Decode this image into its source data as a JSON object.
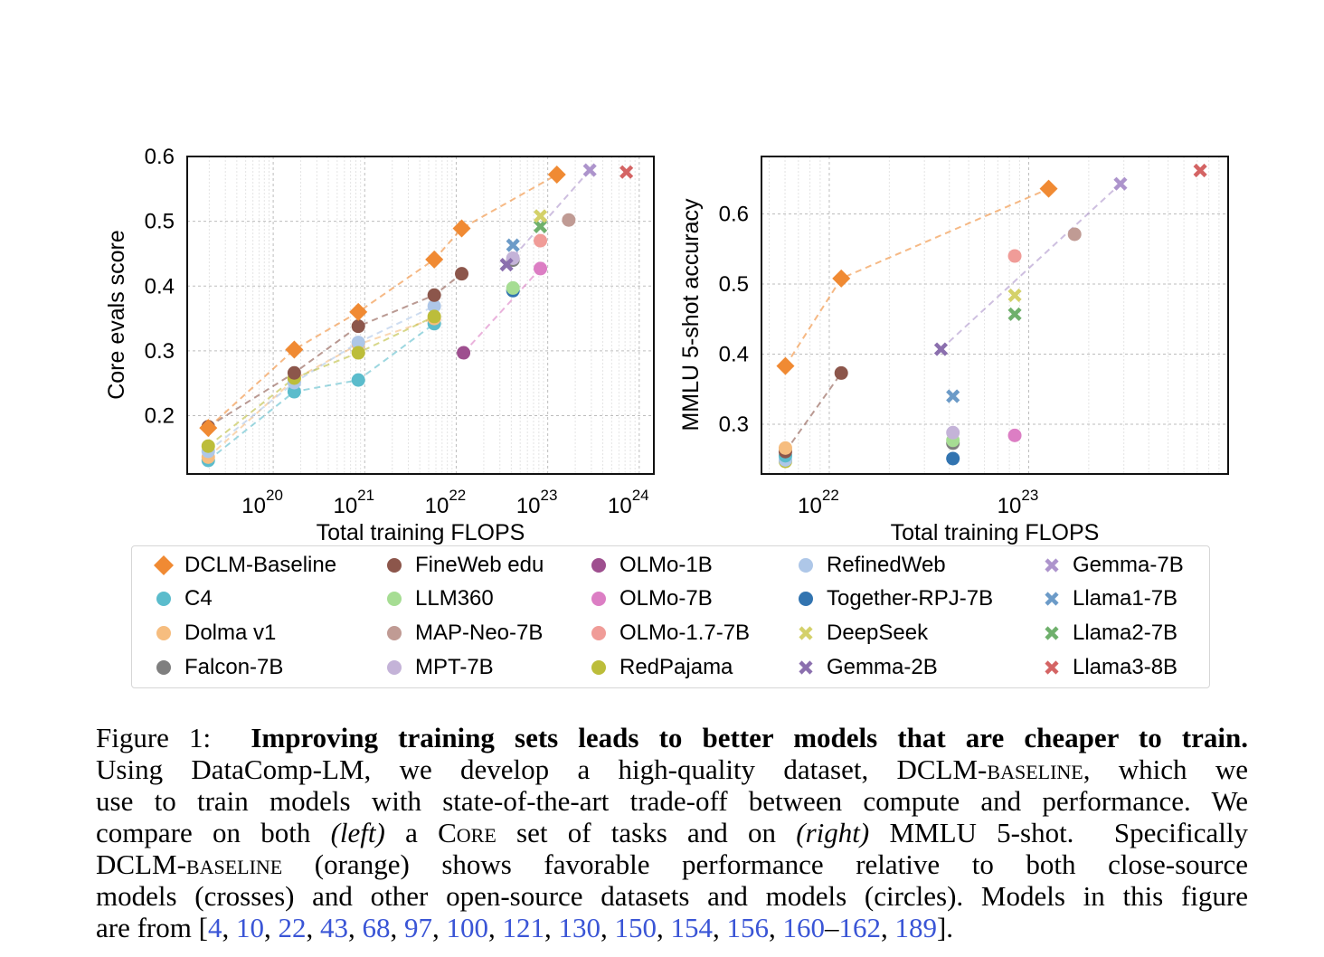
{
  "chart_data": [
    {
      "type": "scatter",
      "id": "left",
      "xlabel": "Total training FLOPS",
      "ylabel": "Core evals score",
      "xscale": "log",
      "x_units": "log10(FLOPs)",
      "xlim": [
        19.06,
        24.16
      ],
      "ylim": [
        0.11,
        0.6
      ],
      "xticks": [
        {
          "base": "10",
          "exp": "20",
          "v": 20
        },
        {
          "base": "10",
          "exp": "21",
          "v": 21
        },
        {
          "base": "10",
          "exp": "22",
          "v": 22
        },
        {
          "base": "10",
          "exp": "23",
          "v": 23
        },
        {
          "base": "10",
          "exp": "24",
          "v": 24
        }
      ],
      "yticks": [
        {
          "label": "0.2",
          "v": 0.2
        },
        {
          "label": "0.3",
          "v": 0.3
        },
        {
          "label": "0.4",
          "v": 0.4
        },
        {
          "label": "0.5",
          "v": 0.5
        },
        {
          "label": "0.6",
          "v": 0.6
        }
      ],
      "grid": true,
      "series": [
        {
          "name": "C4",
          "marker": "circle",
          "color": "#5bbccc",
          "line": true,
          "points": [
            [
              19.29,
              0.131
            ],
            [
              20.23,
              0.237
            ],
            [
              20.93,
              0.255
            ],
            [
              21.76,
              0.342
            ]
          ]
        },
        {
          "name": "Dolma v1",
          "marker": "circle",
          "color": "#f6bd7f",
          "line": true,
          "points": [
            [
              19.29,
              0.136
            ],
            [
              20.23,
              0.256
            ],
            [
              20.93,
              0.31
            ],
            [
              21.76,
              0.35
            ]
          ]
        },
        {
          "name": "RefinedWeb",
          "marker": "circle",
          "color": "#aec7e8",
          "line": true,
          "points": [
            [
              19.29,
              0.145
            ],
            [
              20.23,
              0.251
            ],
            [
              20.93,
              0.313
            ],
            [
              21.76,
              0.369
            ]
          ]
        },
        {
          "name": "RedPajama",
          "marker": "circle",
          "color": "#bcbd3a",
          "line": true,
          "points": [
            [
              19.29,
              0.153
            ],
            [
              20.23,
              0.258
            ],
            [
              20.93,
              0.297
            ],
            [
              21.76,
              0.353
            ]
          ]
        },
        {
          "name": "FineWeb edu",
          "marker": "circle",
          "color": "#8c564b",
          "line": true,
          "points": [
            [
              19.29,
              0.183
            ],
            [
              20.23,
              0.266
            ],
            [
              20.93,
              0.338
            ],
            [
              21.76,
              0.386
            ],
            [
              22.06,
              0.419
            ]
          ]
        },
        {
          "name": "OLMo-1B",
          "marker": "circle",
          "color": "#9e4f8f",
          "line": false,
          "points": [
            [
              22.08,
              0.297
            ]
          ]
        },
        {
          "name": "OLMo-7B",
          "marker": "circle",
          "color": "#dc7ec4",
          "line": false,
          "points": [
            [
              22.92,
              0.427
            ]
          ]
        },
        {
          "name": "OLMo-1B to OLMo-7B",
          "marker": "none",
          "color": "#dc7ec4",
          "line": true,
          "points": [
            [
              22.08,
              0.297
            ],
            [
              22.92,
              0.427
            ]
          ]
        },
        {
          "name": "Together-RPJ-7B",
          "marker": "circle",
          "color": "#3274b0",
          "line": false,
          "points": [
            [
              22.62,
              0.393
            ]
          ]
        },
        {
          "name": "LLM360",
          "marker": "circle",
          "color": "#a6dd93",
          "line": false,
          "points": [
            [
              22.62,
              0.397
            ]
          ]
        },
        {
          "name": "Falcon-7B",
          "marker": "circle",
          "color": "#7f7f7f",
          "line": false,
          "points": [
            [
              22.62,
              0.44
            ]
          ]
        },
        {
          "name": "MPT-7B",
          "marker": "circle",
          "color": "#c4b3d8",
          "line": false,
          "points": [
            [
              22.62,
              0.443
            ]
          ]
        },
        {
          "name": "OLMo-1.7-7B",
          "marker": "circle",
          "color": "#f09c98",
          "line": false,
          "points": [
            [
              22.92,
              0.47
            ]
          ]
        },
        {
          "name": "MAP-Neo-7B",
          "marker": "circle",
          "color": "#c09b94",
          "line": false,
          "points": [
            [
              23.23,
              0.502
            ]
          ]
        },
        {
          "name": "Gemma-2B",
          "marker": "cross",
          "color": "#8b6fae",
          "line": false,
          "points": [
            [
              22.55,
              0.433
            ]
          ]
        },
        {
          "name": "Gemma-7B",
          "marker": "cross",
          "color": "#ad94cc",
          "line": false,
          "points": [
            [
              23.46,
              0.579
            ]
          ]
        },
        {
          "name": "Gemma-2B to Gemma-7B",
          "marker": "none",
          "color": "#ad94cc",
          "line": true,
          "points": [
            [
              22.55,
              0.433
            ],
            [
              23.46,
              0.579
            ]
          ]
        },
        {
          "name": "Llama1-7B",
          "marker": "cross",
          "color": "#6c9bc8",
          "line": false,
          "points": [
            [
              22.62,
              0.463
            ]
          ]
        },
        {
          "name": "Llama2-7B",
          "marker": "cross",
          "color": "#6fb06c",
          "line": false,
          "points": [
            [
              22.92,
              0.492
            ]
          ]
        },
        {
          "name": "DeepSeek",
          "marker": "cross",
          "color": "#d4d16a",
          "line": false,
          "points": [
            [
              22.92,
              0.508
            ]
          ]
        },
        {
          "name": "Llama3-8B",
          "marker": "cross",
          "color": "#d46464",
          "line": false,
          "points": [
            [
              23.86,
              0.576
            ]
          ]
        },
        {
          "name": "DCLM-Baseline",
          "marker": "diamond",
          "color": "#f08a33",
          "line": true,
          "points": [
            [
              19.29,
              0.181
            ],
            [
              20.23,
              0.302
            ],
            [
              20.93,
              0.36
            ],
            [
              21.76,
              0.441
            ],
            [
              22.06,
              0.489
            ],
            [
              23.1,
              0.572
            ]
          ]
        }
      ]
    },
    {
      "type": "scatter",
      "id": "right",
      "xlabel": "Total training FLOPS",
      "ylabel": "MMLU 5-shot accuracy",
      "xscale": "log",
      "x_units": "log10(FLOPs)",
      "xlim": [
        21.66,
        24.0
      ],
      "ylim": [
        0.229,
        0.682
      ],
      "xticks": [
        {
          "base": "10",
          "exp": "22",
          "v": 22
        },
        {
          "base": "10",
          "exp": "23",
          "v": 23
        }
      ],
      "yticks": [
        {
          "label": "0.3",
          "v": 0.3
        },
        {
          "label": "0.4",
          "v": 0.4
        },
        {
          "label": "0.5",
          "v": 0.5
        },
        {
          "label": "0.6",
          "v": 0.6
        }
      ],
      "grid": true,
      "series": [
        {
          "name": "RedPajama",
          "marker": "circle",
          "color": "#bcbd3a",
          "line": false,
          "points": [
            [
              21.78,
              0.247
            ]
          ]
        },
        {
          "name": "RefinedWeb",
          "marker": "circle",
          "color": "#aec7e8",
          "line": false,
          "points": [
            [
              21.78,
              0.249
            ]
          ]
        },
        {
          "name": "C4",
          "marker": "circle",
          "color": "#5bbccc",
          "line": false,
          "points": [
            [
              21.78,
              0.255
            ]
          ]
        },
        {
          "name": "FineWeb edu",
          "marker": "circle",
          "color": "#8c564b",
          "line": true,
          "points": [
            [
              21.78,
              0.261
            ],
            [
              22.06,
              0.373
            ]
          ]
        },
        {
          "name": "Dolma v1",
          "marker": "circle",
          "color": "#f6bd7f",
          "line": false,
          "points": [
            [
              21.78,
              0.266
            ]
          ]
        },
        {
          "name": "Together-RPJ-7B",
          "marker": "circle",
          "color": "#3274b0",
          "line": false,
          "points": [
            [
              22.62,
              0.251
            ]
          ]
        },
        {
          "name": "Falcon-7B",
          "marker": "circle",
          "color": "#7f7f7f",
          "line": false,
          "points": [
            [
              22.62,
              0.273
            ]
          ]
        },
        {
          "name": "LLM360",
          "marker": "circle",
          "color": "#a6dd93",
          "line": false,
          "points": [
            [
              22.62,
              0.277
            ]
          ]
        },
        {
          "name": "MPT-7B",
          "marker": "circle",
          "color": "#c4b3d8",
          "line": false,
          "points": [
            [
              22.62,
              0.288
            ]
          ]
        },
        {
          "name": "OLMo-7B",
          "marker": "circle",
          "color": "#dc7ec4",
          "line": false,
          "points": [
            [
              22.93,
              0.284
            ]
          ]
        },
        {
          "name": "OLMo-1.7-7B",
          "marker": "circle",
          "color": "#f09c98",
          "line": false,
          "points": [
            [
              22.93,
              0.54
            ]
          ]
        },
        {
          "name": "MAP-Neo-7B",
          "marker": "circle",
          "color": "#c09b94",
          "line": false,
          "points": [
            [
              23.23,
              0.571
            ]
          ]
        },
        {
          "name": "Llama1-7B",
          "marker": "cross",
          "color": "#6c9bc8",
          "line": false,
          "points": [
            [
              22.62,
              0.34
            ]
          ]
        },
        {
          "name": "Llama2-7B",
          "marker": "cross",
          "color": "#6fb06c",
          "line": false,
          "points": [
            [
              22.93,
              0.457
            ]
          ]
        },
        {
          "name": "DeepSeek",
          "marker": "cross",
          "color": "#d4d16a",
          "line": false,
          "points": [
            [
              22.93,
              0.484
            ]
          ]
        },
        {
          "name": "Gemma-2B",
          "marker": "cross",
          "color": "#8b6fae",
          "line": false,
          "points": [
            [
              22.56,
              0.407
            ]
          ]
        },
        {
          "name": "Gemma-7B",
          "marker": "cross",
          "color": "#ad94cc",
          "line": false,
          "points": [
            [
              23.46,
              0.643
            ]
          ]
        },
        {
          "name": "Gemma-2B to Gemma-7B",
          "marker": "none",
          "color": "#ad94cc",
          "line": true,
          "points": [
            [
              22.56,
              0.407
            ],
            [
              23.46,
              0.643
            ]
          ]
        },
        {
          "name": "Llama3-8B",
          "marker": "cross",
          "color": "#d46464",
          "line": false,
          "points": [
            [
              23.86,
              0.662
            ]
          ]
        },
        {
          "name": "DCLM-Baseline",
          "marker": "diamond",
          "color": "#f08a33",
          "line": true,
          "points": [
            [
              21.78,
              0.383
            ],
            [
              22.06,
              0.508
            ],
            [
              23.1,
              0.636
            ]
          ]
        }
      ]
    }
  ],
  "legend": [
    {
      "label": "DCLM-Baseline",
      "marker": "diamond",
      "color": "#f08a33"
    },
    {
      "label": "C4",
      "marker": "circle",
      "color": "#5bbccc"
    },
    {
      "label": "Dolma v1",
      "marker": "circle",
      "color": "#f6bd7f"
    },
    {
      "label": "Falcon-7B",
      "marker": "circle",
      "color": "#7f7f7f"
    },
    {
      "label": "FineWeb edu",
      "marker": "circle",
      "color": "#8c564b"
    },
    {
      "label": "LLM360",
      "marker": "circle",
      "color": "#a6dd93"
    },
    {
      "label": "MAP-Neo-7B",
      "marker": "circle",
      "color": "#c09b94"
    },
    {
      "label": "MPT-7B",
      "marker": "circle",
      "color": "#c4b3d8"
    },
    {
      "label": "OLMo-1B",
      "marker": "circle",
      "color": "#9e4f8f"
    },
    {
      "label": "OLMo-7B",
      "marker": "circle",
      "color": "#dc7ec4"
    },
    {
      "label": "OLMo-1.7-7B",
      "marker": "circle",
      "color": "#f09c98"
    },
    {
      "label": "RedPajama",
      "marker": "circle",
      "color": "#bcbd3a"
    },
    {
      "label": "RefinedWeb",
      "marker": "circle",
      "color": "#aec7e8"
    },
    {
      "label": "Together-RPJ-7B",
      "marker": "circle",
      "color": "#3274b0"
    },
    {
      "label": "DeepSeek",
      "marker": "cross",
      "color": "#d4d16a"
    },
    {
      "label": "Gemma-2B",
      "marker": "cross",
      "color": "#8b6fae"
    },
    {
      "label": "Gemma-7B",
      "marker": "cross",
      "color": "#ad94cc"
    },
    {
      "label": "Llama1-7B",
      "marker": "cross",
      "color": "#6c9bc8"
    },
    {
      "label": "Llama2-7B",
      "marker": "cross",
      "color": "#6fb06c"
    },
    {
      "label": "Llama3-8B",
      "marker": "cross",
      "color": "#d46464"
    }
  ],
  "caption": {
    "lines": [
      [
        {
          "t": "Figure 1:  ",
          "s": ""
        },
        {
          "t": "Improving training sets leads to better models that are cheaper to train.",
          "s": "b"
        }
      ],
      [
        {
          "t": "Using DataComp-LM, we develop a high-quality dataset, DCLM-",
          "s": ""
        },
        {
          "t": "baseline",
          "s": "sc"
        },
        {
          "t": ", which we",
          "s": ""
        }
      ],
      [
        {
          "t": "use to train models with state-of-the-art trade-off between compute and performance. We",
          "s": ""
        }
      ],
      [
        {
          "t": "compare on both ",
          "s": ""
        },
        {
          "t": "(left)",
          "s": "i"
        },
        {
          "t": " a ",
          "s": ""
        },
        {
          "t": "Core",
          "s": "sc"
        },
        {
          "t": " set of tasks and on ",
          "s": ""
        },
        {
          "t": "(right)",
          "s": "i"
        },
        {
          "t": " MMLU 5-shot.  Specifically",
          "s": ""
        }
      ],
      [
        {
          "t": "DCLM-",
          "s": ""
        },
        {
          "t": "baseline",
          "s": "sc"
        },
        {
          "t": " (orange) shows favorable performance relative to both close-source",
          "s": ""
        }
      ],
      [
        {
          "t": "models (crosses) and other open-source datasets and models (circles). Models in this figure",
          "s": ""
        }
      ],
      [
        {
          "t": "are from [",
          "s": ""
        },
        {
          "t": "4",
          "s": "lnk"
        },
        {
          "t": ", ",
          "s": ""
        },
        {
          "t": "10",
          "s": "lnk"
        },
        {
          "t": ", ",
          "s": ""
        },
        {
          "t": "22",
          "s": "lnk"
        },
        {
          "t": ", ",
          "s": ""
        },
        {
          "t": "43",
          "s": "lnk"
        },
        {
          "t": ", ",
          "s": ""
        },
        {
          "t": "68",
          "s": "lnk"
        },
        {
          "t": ", ",
          "s": ""
        },
        {
          "t": "97",
          "s": "lnk"
        },
        {
          "t": ", ",
          "s": ""
        },
        {
          "t": "100",
          "s": "lnk"
        },
        {
          "t": ", ",
          "s": ""
        },
        {
          "t": "121",
          "s": "lnk"
        },
        {
          "t": ", ",
          "s": ""
        },
        {
          "t": "130",
          "s": "lnk"
        },
        {
          "t": ", ",
          "s": ""
        },
        {
          "t": "150",
          "s": "lnk"
        },
        {
          "t": ", ",
          "s": ""
        },
        {
          "t": "154",
          "s": "lnk"
        },
        {
          "t": ", ",
          "s": ""
        },
        {
          "t": "156",
          "s": "lnk"
        },
        {
          "t": ", ",
          "s": ""
        },
        {
          "t": "160",
          "s": "lnk"
        },
        {
          "t": "–",
          "s": ""
        },
        {
          "t": "162",
          "s": "lnk"
        },
        {
          "t": ", ",
          "s": ""
        },
        {
          "t": "189",
          "s": "lnk"
        },
        {
          "t": "].",
          "s": ""
        }
      ]
    ]
  }
}
